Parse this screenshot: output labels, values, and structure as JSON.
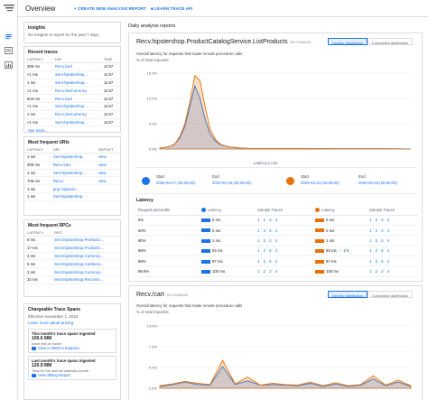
{
  "colors": {
    "accent": "#1a73e8",
    "series_a": "#1a73e8",
    "series_b": "#e8710a",
    "success": "#188038"
  },
  "header": {
    "title": "Overview",
    "create_label": "CREATE NEW ANALYSIS REPORT",
    "learn_label": "LEARN TRACE API"
  },
  "insights": {
    "title": "Insights",
    "text": "No insights to report for the past 7 days"
  },
  "recent_traces": {
    "title": "Recent traces",
    "columns": [
      "LATENCY",
      "URI",
      "TIME"
    ],
    "rows": [
      [
        "306 ms",
        "Recv./cart",
        "11:57"
      ],
      [
        "<1 ms",
        "Sent.hipstershop...",
        "11:57"
      ],
      [
        "1 ms",
        "Sent.hipstershop...",
        "11:57"
      ],
      [
        "<1 ms",
        "Recv./setCurrency",
        "11:57"
      ],
      [
        "843 ms",
        "Recv./cart",
        "11:57"
      ],
      [
        "<1 ms",
        "Sent.hipstershop...",
        "11:57"
      ],
      [
        "1 ms",
        "Recv./setCurrency",
        "11:57"
      ],
      [
        "<1 ms",
        "Sent.hipstershop...",
        "11:57"
      ]
    ],
    "see_more": "See more..."
  },
  "frequent_uris": {
    "title": "Most frequent URIs",
    "columns": [
      "LATENCY",
      "URI",
      "REPORT"
    ],
    "rows": [
      [
        "1 ms",
        "Sent.hipstershop...",
        "view"
      ],
      [
        "409 ms",
        "Recv./cart",
        "view"
      ],
      [
        "1 ms",
        "Sent.hipstershop...",
        "view"
      ],
      [
        "709 ms",
        "Recv./",
        "view"
      ],
      [
        "1 ms",
        "grpc.hipsters...",
        ""
      ],
      [
        "1 ms",
        "Sent.hipstershop...",
        ""
      ]
    ]
  },
  "frequent_rpcs": {
    "title": "Most frequent RPCs",
    "columns": [
      "LATENCY",
      "RPC"
    ],
    "rows": [
      [
        "6 ms",
        "Sent.hipstershop.ProductC..."
      ],
      [
        "17 ms",
        "Sent.hipstershop.ProductC..."
      ],
      [
        "3 ms",
        "Sent.hipstershop.Currency..."
      ],
      [
        "5 ms",
        "Sent.hipstershop.CartServi..."
      ],
      [
        "3 ms",
        "Sent.hipstershop.Currency..."
      ],
      [
        "22 ms",
        "Sent.hipstershop.Recomm..."
      ]
    ]
  },
  "spans": {
    "title": "Chargeable Trace Spans",
    "effective": "Effective November 1, 2018",
    "learn": "Learn more about pricing",
    "month_label": "This month's trace spans ingested",
    "month_value": "109.6 MM",
    "month_since": "since first of month",
    "month_link": "View in Metrics Explorer",
    "last_label": "Last month's trace spans ingested",
    "last_value": "120.9 MM",
    "last_since": "Total for the last full calendar month",
    "last_link": "View Billing Report"
  },
  "reports": {
    "title": "Daily analysis reports",
    "distribution_label": "Density distribution",
    "cumulative_label": "Cumulative distribution",
    "desc": "Overall latency for requests that make remote procedure calls",
    "ylabel": "% of total requests",
    "no_change": "NO CHANGE",
    "panel1": {
      "title": "Recv.hipstershop.ProductCatalogService.ListProducts",
      "xlabel": "Latency in ms",
      "start_a_label": "Start",
      "start_a": "2020-03-17 (20:00:00)",
      "end_a_label": "End",
      "end_a": "2020-03-18 (20:00:00)",
      "start_b_label": "Start",
      "start_b": "2020-03-24 (20:00:00)",
      "end_b_label": "End",
      "end_b": "2020-03-25 (20:00:00)",
      "latency_title": "Latency",
      "columns": [
        "Request percentile",
        "Latency",
        "Sample Traces",
        "Latency",
        "Sample Traces"
      ],
      "rows": [
        [
          "5%",
          "0 ms",
          "1 2 3 4",
          "0 ms",
          "1 2 3 4",
          ""
        ],
        [
          "50%",
          "0 ms",
          "1 2 3 4",
          "0 ms",
          "1 2 3 4",
          ""
        ],
        [
          "90%",
          "1 ms",
          "1 2 3 4",
          "1 ms",
          "1 2 3 4",
          ""
        ],
        [
          "95%",
          "94 ms",
          "1 2 3 4",
          "93 ms",
          "1 2 3 4",
          "↓ -1%"
        ],
        [
          "98%",
          "97 ms",
          "1 2 3 4",
          "97 ms",
          "1 2 3 4",
          ""
        ],
        [
          "99.9%",
          "100 ms",
          "1 2 3 4",
          "100 ms",
          "1 2 3 4",
          ""
        ]
      ]
    },
    "panel2": {
      "title": "Recv./cart"
    }
  },
  "chart_data": [
    {
      "type": "area",
      "title": "",
      "ylabel": "% of total requests",
      "xlabel": "Latency in ms",
      "yticks": [
        "15.0%",
        "10.0%",
        "5.0%",
        "0.0%"
      ],
      "ylim": [
        0,
        15
      ],
      "x": [
        0,
        2,
        4,
        6,
        8,
        10,
        12,
        14,
        16,
        18,
        20,
        22,
        24,
        26,
        28,
        30,
        32,
        34,
        36,
        38,
        40,
        42,
        44,
        46,
        48,
        50,
        55,
        60,
        70,
        80,
        90,
        100
      ],
      "series": [
        {
          "color": "#1a73e8",
          "values": [
            0.2,
            0.3,
            0.5,
            1.0,
            2.2,
            4.5,
            8.5,
            12.5,
            10.0,
            6.0,
            3.0,
            1.6,
            0.9,
            0.6,
            0.4,
            0.3,
            0.2,
            0.15,
            0.1,
            0.1,
            0.1,
            0.1,
            0.1,
            0.1,
            0.1,
            0.1,
            0.1,
            0.1,
            0.05,
            0.05,
            0.05,
            0.0
          ]
        },
        {
          "color": "#e8710a",
          "values": [
            0.2,
            0.3,
            0.5,
            1.0,
            2.5,
            5.0,
            9.5,
            14.5,
            13.5,
            8.5,
            4.0,
            2.0,
            1.0,
            0.6,
            0.4,
            0.3,
            0.2,
            0.15,
            0.1,
            0.1,
            0.1,
            0.1,
            0.1,
            0.1,
            0.1,
            0.1,
            0.1,
            0.1,
            0.05,
            0.05,
            0.05,
            0.0
          ]
        }
      ]
    },
    {
      "type": "area",
      "title": "",
      "ylabel": "% of total requests",
      "yticks": [
        "10.0%",
        "7.5%",
        "5.0%",
        "2.5%"
      ],
      "ylim": [
        0,
        10
      ],
      "x": [
        0,
        5,
        10,
        15,
        20,
        25,
        30,
        35,
        40,
        45,
        50,
        55,
        60,
        65,
        70,
        75,
        80,
        85,
        90,
        95,
        100
      ],
      "series": [
        {
          "color": "#1a73e8",
          "values": [
            0.3,
            0.6,
            1.0,
            0.6,
            0.5,
            3.5,
            0.6,
            1.2,
            0.5,
            0.6,
            0.5,
            0.4,
            0.8,
            0.3,
            0.7,
            0.3,
            0.5,
            1.5,
            0.4,
            1.0,
            0.3
          ]
        },
        {
          "color": "#e8710a",
          "values": [
            0.4,
            0.7,
            1.1,
            0.8,
            0.6,
            4.5,
            0.7,
            1.8,
            0.5,
            0.8,
            0.6,
            0.5,
            1.0,
            0.4,
            0.9,
            0.4,
            0.6,
            2.0,
            0.5,
            1.3,
            0.4
          ]
        }
      ]
    }
  ]
}
